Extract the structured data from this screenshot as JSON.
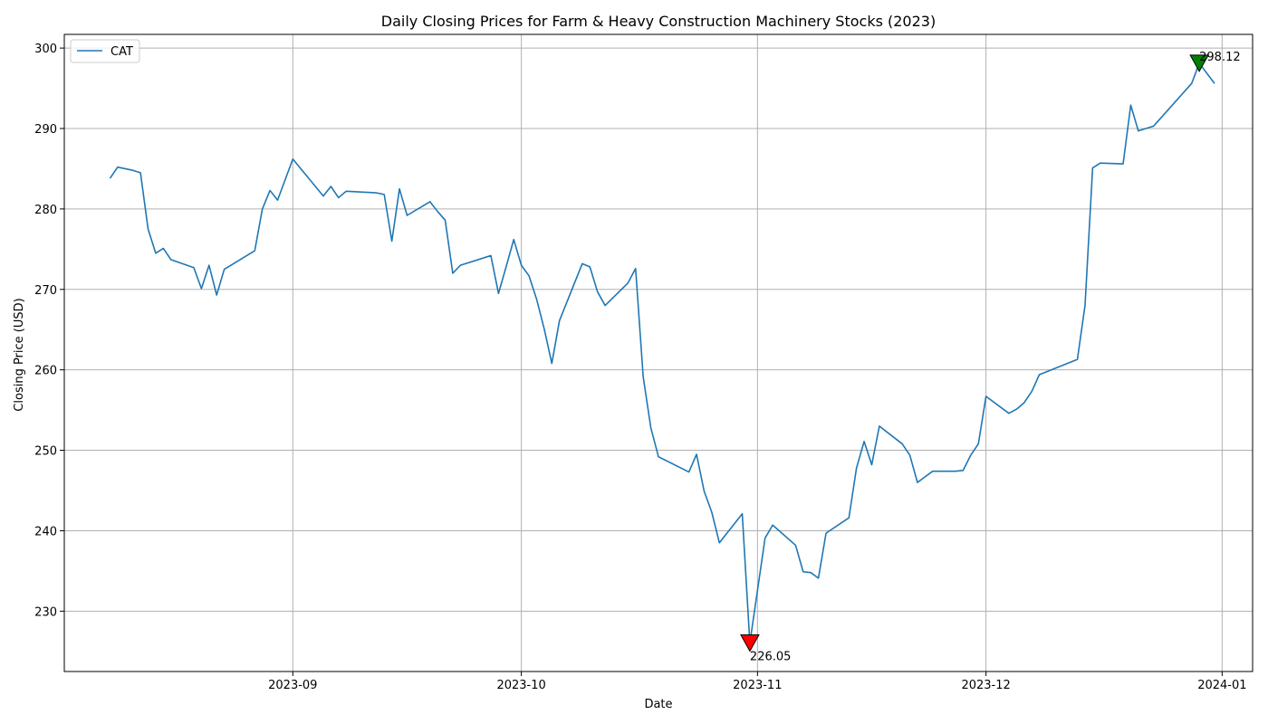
{
  "chart_data": {
    "type": "line",
    "title": "Daily Closing Prices for Farm & Heavy Construction Machinery Stocks (2023)",
    "xlabel": "Date",
    "ylabel": "Closing Price (USD)",
    "xlim": [
      "2023-08-02",
      "2024-01-05"
    ],
    "ylim": [
      222.5,
      301.7
    ],
    "x_ticks": [
      "2023-09-01",
      "2023-10-01",
      "2023-11-01",
      "2023-12-01",
      "2024-01-01"
    ],
    "x_tick_labels": [
      "2023-09",
      "2023-10",
      "2023-11",
      "2023-12",
      "2024-01"
    ],
    "y_ticks": [
      230,
      240,
      250,
      260,
      270,
      280,
      290,
      300
    ],
    "y_tick_labels": [
      "230",
      "240",
      "250",
      "260",
      "270",
      "280",
      "290",
      "300"
    ],
    "grid": true,
    "legend_position": "upper-left",
    "colors": {
      "series": "#1f77b4",
      "min_marker": "#ff0000",
      "max_marker": "#008000",
      "grid": "#b0b0b0"
    },
    "series": [
      {
        "name": "CAT",
        "x": [
          "2023-08-08",
          "2023-08-09",
          "2023-08-11",
          "2023-08-12",
          "2023-08-13",
          "2023-08-14",
          "2023-08-15",
          "2023-08-16",
          "2023-08-19",
          "2023-08-20",
          "2023-08-21",
          "2023-08-22",
          "2023-08-23",
          "2023-08-27",
          "2023-08-28",
          "2023-08-29",
          "2023-08-30",
          "2023-09-01",
          "2023-09-05",
          "2023-09-06",
          "2023-09-07",
          "2023-09-08",
          "2023-09-12",
          "2023-09-13",
          "2023-09-14",
          "2023-09-15",
          "2023-09-16",
          "2023-09-19",
          "2023-09-20",
          "2023-09-21",
          "2023-09-22",
          "2023-09-23",
          "2023-09-27",
          "2023-09-28",
          "2023-09-29",
          "2023-09-30",
          "2023-10-01",
          "2023-10-02",
          "2023-10-03",
          "2023-10-04",
          "2023-10-05",
          "2023-10-06",
          "2023-10-09",
          "2023-10-10",
          "2023-10-11",
          "2023-10-12",
          "2023-10-15",
          "2023-10-16",
          "2023-10-17",
          "2023-10-18",
          "2023-10-19",
          "2023-10-23",
          "2023-10-24",
          "2023-10-25",
          "2023-10-26",
          "2023-10-27",
          "2023-10-30",
          "2023-10-31",
          "2023-11-02",
          "2023-11-03",
          "2023-11-06",
          "2023-11-07",
          "2023-11-08",
          "2023-11-09",
          "2023-11-10",
          "2023-11-13",
          "2023-11-14",
          "2023-11-15",
          "2023-11-16",
          "2023-11-17",
          "2023-11-20",
          "2023-11-21",
          "2023-11-22",
          "2023-11-23",
          "2023-11-24",
          "2023-11-26",
          "2023-11-27",
          "2023-11-28",
          "2023-11-29",
          "2023-11-30",
          "2023-12-01",
          "2023-12-04",
          "2023-12-05",
          "2023-12-06",
          "2023-12-07",
          "2023-12-08",
          "2023-12-13",
          "2023-12-14",
          "2023-12-15",
          "2023-12-16",
          "2023-12-19",
          "2023-12-20",
          "2023-12-21",
          "2023-12-23",
          "2023-12-28",
          "2023-12-29",
          "2023-12-31"
        ],
        "y": [
          283.8,
          285.2,
          284.8,
          284.5,
          277.5,
          274.5,
          275.1,
          273.7,
          272.7,
          270.1,
          273.0,
          269.3,
          272.5,
          274.8,
          280.0,
          282.3,
          281.1,
          286.2,
          281.6,
          282.8,
          281.4,
          282.2,
          282.0,
          281.8,
          276.0,
          282.5,
          279.2,
          280.9,
          279.7,
          278.6,
          272.0,
          273.0,
          274.2,
          269.5,
          272.8,
          276.2,
          273.0,
          271.7,
          268.8,
          265.1,
          260.8,
          266.1,
          273.2,
          272.8,
          269.7,
          268.0,
          270.8,
          272.6,
          259.1,
          252.8,
          249.2,
          247.3,
          249.5,
          244.9,
          242.3,
          238.5,
          242.1,
          226.05,
          239.1,
          240.7,
          238.2,
          234.9,
          234.8,
          234.1,
          239.7,
          241.6,
          247.8,
          251.1,
          248.2,
          253.0,
          250.8,
          249.4,
          246.0,
          246.7,
          247.4,
          247.4,
          247.4,
          247.5,
          249.4,
          250.8,
          256.7,
          254.6,
          255.1,
          255.9,
          257.3,
          259.4,
          261.3,
          268.0,
          285.1,
          285.7,
          285.6,
          292.9,
          289.7,
          290.3,
          295.6,
          298.12,
          295.6
        ]
      }
    ],
    "annotations": [
      {
        "kind": "min",
        "x": "2023-10-31",
        "y": 226.05,
        "label": "226.05"
      },
      {
        "kind": "max",
        "x": "2023-12-29",
        "y": 298.12,
        "label": "298.12"
      }
    ]
  }
}
